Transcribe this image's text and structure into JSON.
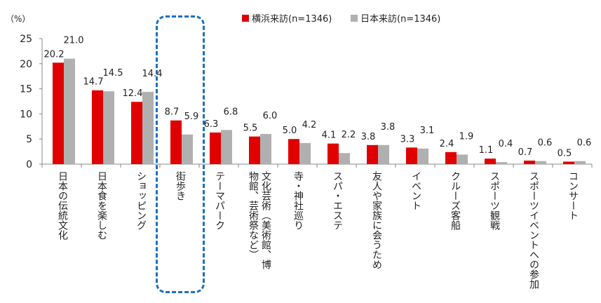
{
  "chart_data": {
    "type": "bar",
    "unit_label": "（%）",
    "ylim": [
      0,
      25
    ],
    "yticks": [
      0,
      5,
      10,
      15,
      20,
      25
    ],
    "grid": false,
    "legend_position": "top",
    "categories": [
      "日本の伝統文化",
      "日本食を楽しむ",
      "ショッピング",
      "街歩き",
      "テーマパーク",
      "文化芸術（美術館、博物館、芸術祭など）",
      "寺・神社巡り",
      "スパ・エステ",
      "友人や家族に会うため",
      "イベント",
      "クルーズ客船",
      "スポーツ観戦",
      "スポーツイベントへの参加",
      "コンサート"
    ],
    "series": [
      {
        "name": "横浜来訪(n=1346)",
        "color": "#e00000",
        "values": [
          20.2,
          14.7,
          12.4,
          8.7,
          6.3,
          5.5,
          5.0,
          4.1,
          3.8,
          3.3,
          2.4,
          1.1,
          0.7,
          0.5
        ],
        "labels": [
          "20.2",
          "14.7",
          "12.4",
          "8.7",
          "6.3",
          "5.5",
          "5.0",
          "4.1",
          "3.8",
          "3.3",
          "2.4",
          "1.1",
          "0.7",
          "0.5"
        ]
      },
      {
        "name": "日本来訪(n=1346)",
        "color": "#b0b0b0",
        "values": [
          21.0,
          14.5,
          14.4,
          5.9,
          6.8,
          6.0,
          4.2,
          2.2,
          3.8,
          3.1,
          1.9,
          0.4,
          0.6,
          0.6
        ],
        "labels": [
          "21.0",
          "14.5",
          "14.4",
          "5.9",
          "6.8",
          "6.0",
          "4.2",
          "2.2",
          "3.8",
          "3.1",
          "1.9",
          "0.4",
          "0.6",
          "0.6"
        ]
      }
    ],
    "highlight": {
      "category": "街歩き",
      "style": "dashed-box",
      "color": "#1a70c0"
    }
  }
}
